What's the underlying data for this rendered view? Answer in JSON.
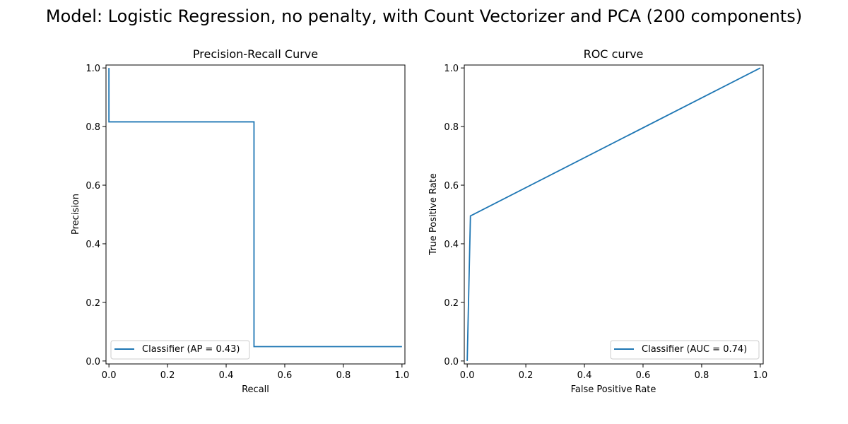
{
  "figure": {
    "suptitle": "Model: Logistic Regression, no penalty, with Count Vectorizer and PCA (200 components)"
  },
  "chart_data": [
    {
      "type": "line",
      "title": "Precision-Recall Curve",
      "xlabel": "Recall",
      "ylabel": "Precision",
      "xlim": [
        -0.01,
        1.01
      ],
      "ylim": [
        -0.01,
        1.01
      ],
      "xticks": [
        0.0,
        0.2,
        0.4,
        0.6,
        0.8,
        1.0
      ],
      "yticks": [
        0.0,
        0.2,
        0.4,
        0.6,
        0.8,
        1.0
      ],
      "xtick_labels": [
        "0.0",
        "0.2",
        "0.4",
        "0.6",
        "0.8",
        "1.0"
      ],
      "ytick_labels": [
        "0.0",
        "0.2",
        "0.4",
        "0.6",
        "0.8",
        "1.0"
      ],
      "grid": false,
      "legend_position": "lower-left",
      "series": [
        {
          "name": "Classifier (AP = 0.43)",
          "color": "#1f77b4",
          "step": true,
          "x": [
            0.0,
            0.0,
            0.495,
            0.495,
            1.0
          ],
          "y": [
            1.0,
            0.816,
            0.816,
            0.049,
            0.049
          ]
        }
      ]
    },
    {
      "type": "line",
      "title": "ROC curve",
      "xlabel": "False Positive Rate",
      "ylabel": "True Positive Rate",
      "xlim": [
        -0.01,
        1.01
      ],
      "ylim": [
        -0.01,
        1.01
      ],
      "xticks": [
        0.0,
        0.2,
        0.4,
        0.6,
        0.8,
        1.0
      ],
      "yticks": [
        0.0,
        0.2,
        0.4,
        0.6,
        0.8,
        1.0
      ],
      "xtick_labels": [
        "0.0",
        "0.2",
        "0.4",
        "0.6",
        "0.8",
        "1.0"
      ],
      "ytick_labels": [
        "0.0",
        "0.2",
        "0.4",
        "0.6",
        "0.8",
        "1.0"
      ],
      "grid": false,
      "legend_position": "lower-right",
      "series": [
        {
          "name": "Classifier (AUC = 0.74)",
          "color": "#1f77b4",
          "step": false,
          "x": [
            0.0,
            0.011,
            1.0
          ],
          "y": [
            0.0,
            0.495,
            1.0
          ]
        }
      ]
    }
  ]
}
